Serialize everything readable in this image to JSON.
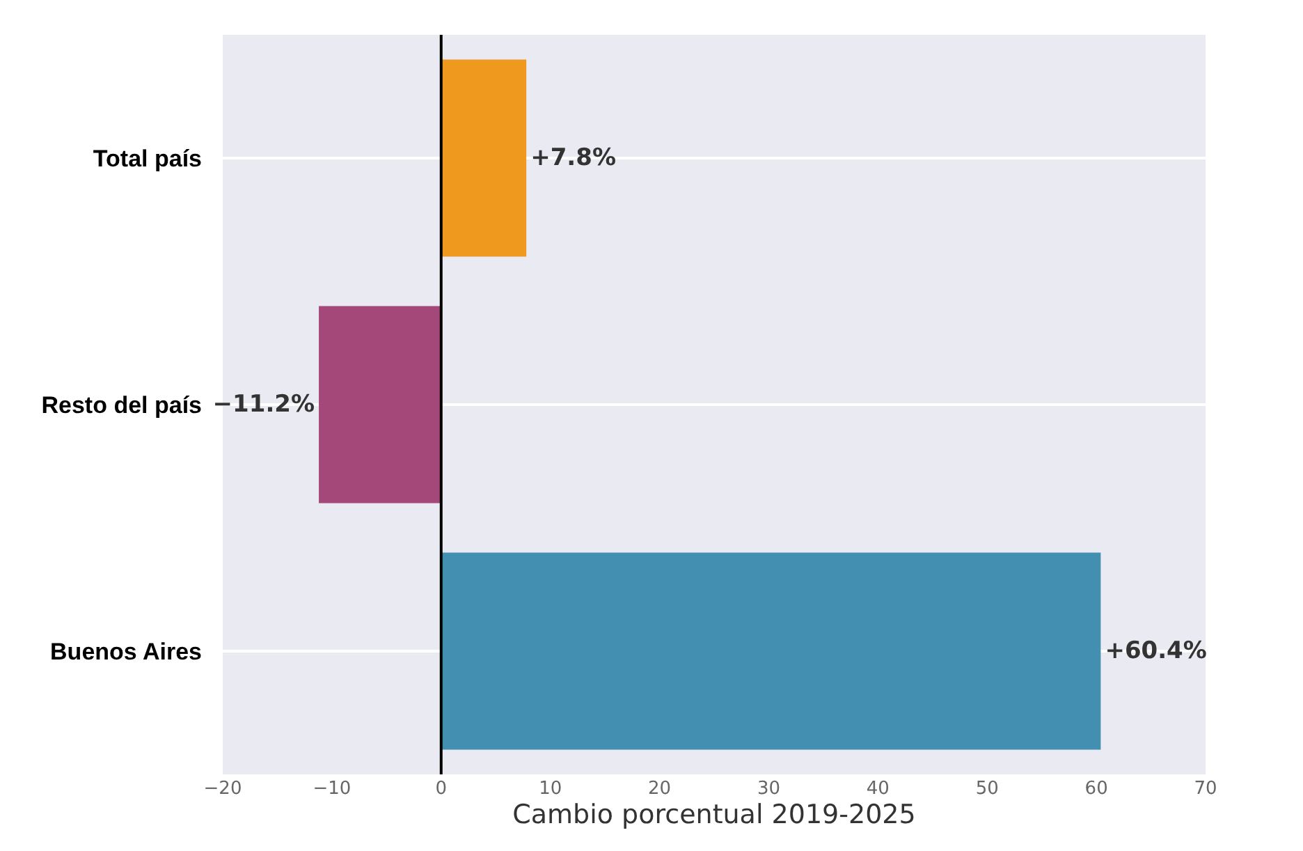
{
  "chart_data": {
    "type": "bar",
    "orientation": "horizontal",
    "categories": [
      "Total país",
      "Resto del país",
      "Buenos Aires"
    ],
    "values": [
      7.8,
      -11.2,
      60.4
    ],
    "colors": [
      "#f0991f",
      "#a4487a",
      "#428fb2"
    ],
    "value_labels": [
      "+7.8%",
      "−11.2%",
      "+60.4%"
    ],
    "xlabel": "Cambio porcentual 2019-2025",
    "xlim": [
      -20,
      70
    ],
    "xticks": [
      -20,
      -10,
      0,
      10,
      20,
      30,
      40,
      50,
      60,
      70
    ],
    "ref_lines": [
      {
        "axis": "x",
        "value": 0,
        "color": "#000000"
      }
    ],
    "grid": "y"
  }
}
